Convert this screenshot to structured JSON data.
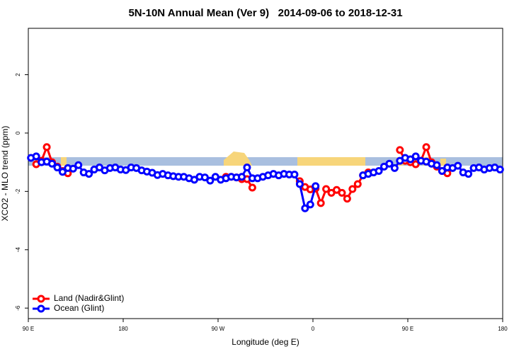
{
  "chart_data": {
    "type": "line",
    "title": "5N-10N Annual Mean (Ver 9)   2014-09-06 to 2018-12-31",
    "x_label": "Longitude (deg E)",
    "y_label": "XCO2 - MLO trend (ppm)",
    "x": [
      92.5,
      97.5,
      102.5,
      107.5,
      112.5,
      117.5,
      122.5,
      127.5,
      132.5,
      137.5,
      142.5,
      147.5,
      152.5,
      157.5,
      162.5,
      167.5,
      172.5,
      177.5,
      182.5,
      187.5,
      192.5,
      197.5,
      202.5,
      207.5,
      212.5,
      217.5,
      222.5,
      227.5,
      232.5,
      237.5,
      242.5,
      247.5,
      252.5,
      257.5,
      262.5,
      267.5,
      272.5,
      277.5,
      282.5,
      287.5,
      292.5,
      297.5,
      302.5,
      307.5,
      312.5,
      317.5,
      322.5,
      327.5,
      332.5,
      337.5,
      342.5,
      347.5,
      352.5,
      357.5,
      362.5,
      367.5,
      372.5,
      377.5,
      382.5,
      387.5,
      392.5,
      397.5,
      402.5,
      407.5,
      412.5,
      417.5,
      422.5,
      427.5,
      432.5,
      437.5,
      442.5,
      447.5,
      452.5,
      457.5,
      462.5,
      467.5,
      472.5,
      477.5,
      482.5,
      487.5,
      492.5,
      497.5,
      502.5,
      507.5,
      512.5,
      517.5,
      522.5,
      527.5,
      532.5,
      537.5
    ],
    "series": [
      {
        "name": "Land (Nadir&Glint)",
        "color": "#ff0000",
        "values": [
          null,
          -1.07,
          -0.95,
          -0.48,
          -1.0,
          -1.15,
          -1.3,
          -1.38,
          null,
          null,
          null,
          null,
          null,
          null,
          null,
          null,
          null,
          null,
          null,
          null,
          null,
          null,
          null,
          null,
          null,
          null,
          null,
          null,
          null,
          null,
          null,
          null,
          null,
          null,
          null,
          null,
          null,
          -1.5,
          -1.5,
          -1.52,
          -1.58,
          -1.58,
          -1.87,
          null,
          null,
          null,
          null,
          null,
          null,
          null,
          null,
          -1.65,
          -1.85,
          -1.93,
          -1.9,
          -2.4,
          -1.92,
          -2.05,
          -1.95,
          -2.05,
          -2.25,
          -1.92,
          -1.75,
          -1.45,
          -1.35,
          null,
          null,
          null,
          null,
          null,
          -0.58,
          -0.95,
          -1.0,
          -1.07,
          -0.95,
          -0.48,
          -1.0,
          -1.15,
          -1.3,
          -1.38,
          null,
          null,
          null,
          null,
          null,
          null,
          null,
          null,
          null,
          null
        ]
      },
      {
        "name": "Ocean (Glint)",
        "color": "#0000ff",
        "values": [
          -0.85,
          -0.8,
          -1.0,
          -0.98,
          -1.05,
          -1.18,
          -1.33,
          -1.2,
          -1.22,
          -1.1,
          -1.35,
          -1.4,
          -1.25,
          -1.18,
          -1.28,
          -1.2,
          -1.18,
          -1.25,
          -1.27,
          -1.18,
          -1.2,
          -1.28,
          -1.32,
          -1.36,
          -1.44,
          -1.4,
          -1.45,
          -1.48,
          -1.5,
          -1.5,
          -1.55,
          -1.6,
          -1.5,
          -1.52,
          -1.63,
          -1.5,
          -1.6,
          -1.55,
          -1.5,
          -1.52,
          -1.5,
          -1.18,
          -1.55,
          -1.55,
          -1.5,
          -1.45,
          -1.4,
          -1.45,
          -1.4,
          -1.42,
          -1.42,
          -1.75,
          -2.58,
          -2.45,
          -1.82,
          null,
          null,
          null,
          null,
          null,
          null,
          null,
          null,
          -1.45,
          -1.4,
          -1.35,
          -1.3,
          -1.15,
          -1.05,
          -1.2,
          -0.95,
          -0.85,
          -0.9,
          -0.8,
          -0.95,
          -0.98,
          -1.05,
          -1.1,
          -1.3,
          -1.18,
          -1.2,
          -1.12,
          -1.35,
          -1.4,
          -1.2,
          -1.18,
          -1.25,
          -1.2,
          -1.18,
          -1.25
        ]
      }
    ],
    "xlim": [
      90,
      540
    ],
    "xticks": [
      {
        "value": 90,
        "label": "90 E"
      },
      180,
      {
        "value": 270,
        "label": "90 W"
      },
      {
        "value": 360,
        "label": "0"
      },
      {
        "value": 450,
        "label": "90 E"
      },
      {
        "value": 540,
        "label": "180"
      }
    ],
    "ylim": [
      -6.36,
      3.59
    ],
    "yticks": [
      -6,
      -4,
      -2,
      0,
      2
    ],
    "legend": "bottom-left"
  }
}
